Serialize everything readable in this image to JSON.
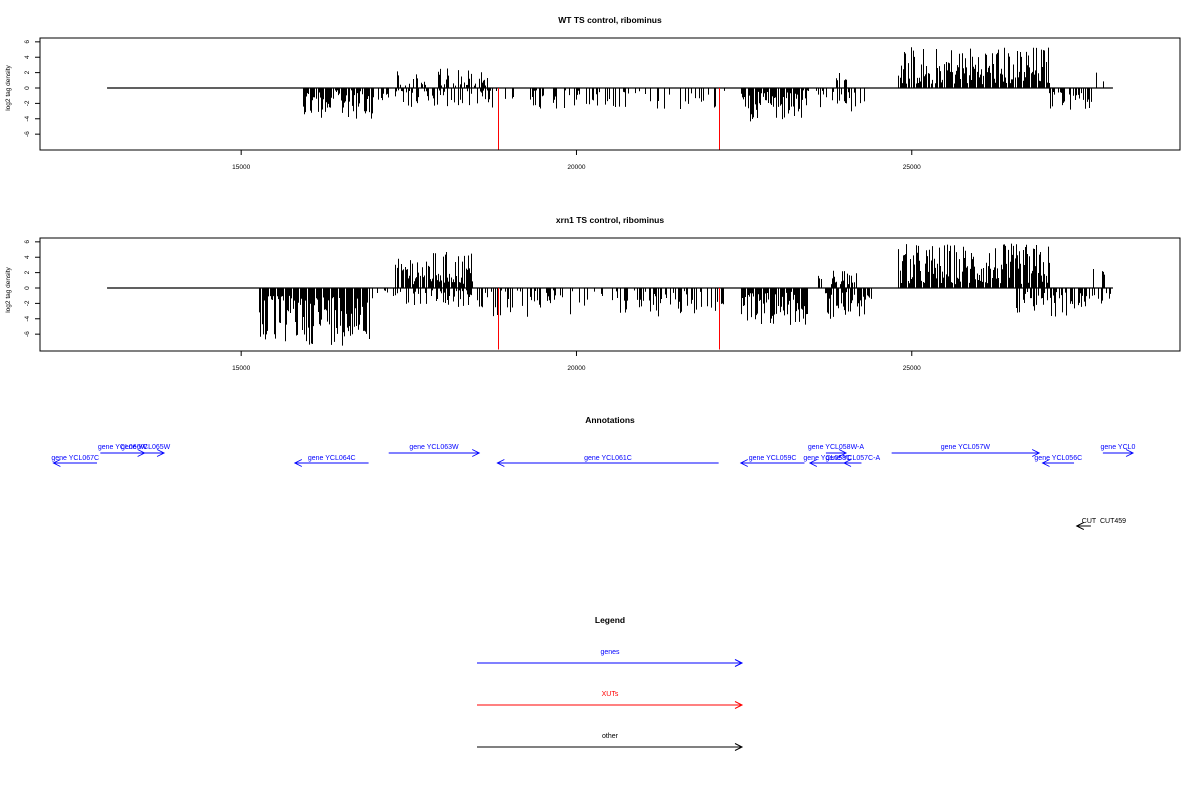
{
  "chart_data": [
    {
      "type": "bar",
      "title": "WT TS control, ribominus",
      "xlabel": "",
      "ylabel": "log2 tag density",
      "xlim": [
        12000,
        29000
      ],
      "ylim": [
        -8,
        6
      ],
      "xticks": [
        "15000",
        "20000",
        "25000"
      ],
      "yticks": [
        "6",
        "4",
        "2",
        "0",
        "-2",
        "-4",
        "-6"
      ],
      "baseline": {
        "x": [
          13000,
          28000
        ],
        "y": 0
      },
      "red_markers": [
        {
          "x": 18830,
          "y": -8
        },
        {
          "x": 22120,
          "y": -8
        }
      ],
      "regions": [
        {
          "x": [
            15350,
            15400
          ],
          "sign": -1,
          "min": 1.0,
          "max": 1.8,
          "density": 0.3
        },
        {
          "x": [
            15900,
            16950
          ],
          "sign": -1,
          "min": 0.3,
          "max": 4.0,
          "density": 0.9
        },
        {
          "x": [
            16950,
            18700
          ],
          "sign": -1,
          "min": 0.3,
          "max": 2.5,
          "density": 0.5
        },
        {
          "x": [
            17300,
            18700
          ],
          "sign": 1,
          "min": 0.3,
          "max": 2.8,
          "density": 0.55
        },
        {
          "x": [
            18700,
            22200
          ],
          "sign": -1,
          "min": 0.3,
          "max": 2.8,
          "density": 0.35
        },
        {
          "x": [
            22450,
            23350
          ],
          "sign": -1,
          "min": 0.5,
          "max": 4.5,
          "density": 0.9
        },
        {
          "x": [
            23350,
            24300
          ],
          "sign": -1,
          "min": 0.3,
          "max": 3.3,
          "density": 0.4
        },
        {
          "x": [
            23800,
            24050
          ],
          "sign": 1,
          "min": 1.0,
          "max": 2.4,
          "density": 0.4
        },
        {
          "x": [
            24800,
            27050
          ],
          "sign": 1,
          "min": 0.5,
          "max": 5.5,
          "density": 0.95
        },
        {
          "x": [
            27050,
            27700
          ],
          "sign": -1,
          "min": 0.5,
          "max": 3.0,
          "density": 0.6
        },
        {
          "x": [
            27700,
            27980
          ],
          "sign": 1,
          "min": 0.3,
          "max": 2.2,
          "density": 0.2
        }
      ]
    },
    {
      "type": "bar",
      "title": "xrn1 TS control, ribominus",
      "xlabel": "",
      "ylabel": "log2 tag density",
      "xlim": [
        12000,
        29000
      ],
      "ylim": [
        -8,
        6
      ],
      "xticks": [
        "15000",
        "20000",
        "25000"
      ],
      "yticks": [
        "6",
        "4",
        "2",
        "0",
        "-2",
        "-4",
        "-6"
      ],
      "baseline": {
        "x": [
          13000,
          28000
        ],
        "y": 0
      },
      "red_markers": [
        {
          "x": 18830,
          "y": -8
        },
        {
          "x": 22120,
          "y": -8
        }
      ],
      "regions": [
        {
          "x": [
            15270,
            16900
          ],
          "sign": -1,
          "min": 1.0,
          "max": 7.5,
          "density": 1.0
        },
        {
          "x": [
            16900,
            17300
          ],
          "sign": -1,
          "min": 0.3,
          "max": 2.2,
          "density": 0.35
        },
        {
          "x": [
            17300,
            18450
          ],
          "sign": 1,
          "min": 0.5,
          "max": 4.8,
          "density": 0.9
        },
        {
          "x": [
            17300,
            18650
          ],
          "sign": -1,
          "min": 0.3,
          "max": 2.6,
          "density": 0.6
        },
        {
          "x": [
            18650,
            22200
          ],
          "sign": -1,
          "min": 0.3,
          "max": 3.8,
          "density": 0.45
        },
        {
          "x": [
            22450,
            23450
          ],
          "sign": -1,
          "min": 0.5,
          "max": 4.8,
          "density": 0.95
        },
        {
          "x": [
            23600,
            24200
          ],
          "sign": 1,
          "min": 0.5,
          "max": 2.3,
          "density": 0.6
        },
        {
          "x": [
            23700,
            24400
          ],
          "sign": -1,
          "min": 0.5,
          "max": 4.0,
          "density": 0.9
        },
        {
          "x": [
            24800,
            27050
          ],
          "sign": 1,
          "min": 0.5,
          "max": 5.8,
          "density": 1.0
        },
        {
          "x": [
            26550,
            27650
          ],
          "sign": -1,
          "min": 0.5,
          "max": 3.8,
          "density": 0.8
        },
        {
          "x": [
            27650,
            27980
          ],
          "sign": 1,
          "min": 0.3,
          "max": 2.6,
          "density": 0.35
        },
        {
          "x": [
            27650,
            27980
          ],
          "sign": -1,
          "min": 0.3,
          "max": 2.2,
          "density": 0.35
        }
      ]
    }
  ],
  "annotations": {
    "title": "Annotations",
    "genes_color": "#0000ff",
    "other_color": "#000000",
    "features": [
      {
        "label": "gene YCL067C",
        "start": 12850,
        "end": 12200,
        "strand": "-",
        "row": 1,
        "type": "gene"
      },
      {
        "label": "gene YCL066W",
        "start": 12900,
        "end": 13560,
        "strand": "+",
        "row": 0,
        "type": "gene"
      },
      {
        "label": "gene YCL065W",
        "start": 13300,
        "end": 13850,
        "strand": "+",
        "row": 0,
        "type": "gene"
      },
      {
        "label": "gene YCL064C",
        "start": 16900,
        "end": 15800,
        "strand": "-",
        "row": 1,
        "type": "gene"
      },
      {
        "label": "gene YCL063W",
        "start": 17200,
        "end": 18550,
        "strand": "+",
        "row": 0,
        "type": "gene"
      },
      {
        "label": "gene YCL061C",
        "start": 22120,
        "end": 18820,
        "strand": "-",
        "row": 1,
        "type": "gene"
      },
      {
        "label": "gene YCL059C",
        "start": 23400,
        "end": 22450,
        "strand": "-",
        "row": 1,
        "type": "gene"
      },
      {
        "label": "gene YCL058W-A",
        "start": 23720,
        "end": 24020,
        "strand": "+",
        "row": 0,
        "type": "gene"
      },
      {
        "label": "gene YCL058C",
        "start": 24000,
        "end": 23480,
        "strand": "-",
        "row": 1,
        "type": "gene"
      },
      {
        "label": "gene YCL057C-A",
        "start": 24250,
        "end": 23990,
        "strand": "-",
        "row": 1,
        "type": "gene"
      },
      {
        "label": "gene YCL057W",
        "start": 24700,
        "end": 26900,
        "strand": "+",
        "row": 0,
        "type": "gene"
      },
      {
        "label": "gene YCL056C",
        "start": 27420,
        "end": 26950,
        "strand": "-",
        "row": 1,
        "type": "gene"
      },
      {
        "label": "gene YCL0",
        "start": 27850,
        "end": 28300,
        "strand": "+",
        "row": 0,
        "type": "gene"
      },
      {
        "label": "CUT",
        "start": 27670,
        "end": 27460,
        "strand": "-",
        "row": 2,
        "type": "other"
      },
      {
        "label": "CUT459",
        "start": 27670,
        "end": 27460,
        "strand": "-",
        "row": 2,
        "type": "other"
      }
    ]
  },
  "legend": {
    "title": "Legend",
    "items": [
      {
        "label": "genes",
        "color": "#0000ff"
      },
      {
        "label": "XUTs",
        "color": "#ff0000"
      },
      {
        "label": "other",
        "color": "#000000"
      }
    ]
  },
  "colors": {
    "signal": "#000000",
    "marker": "#ff0000",
    "axis": "#000000"
  }
}
